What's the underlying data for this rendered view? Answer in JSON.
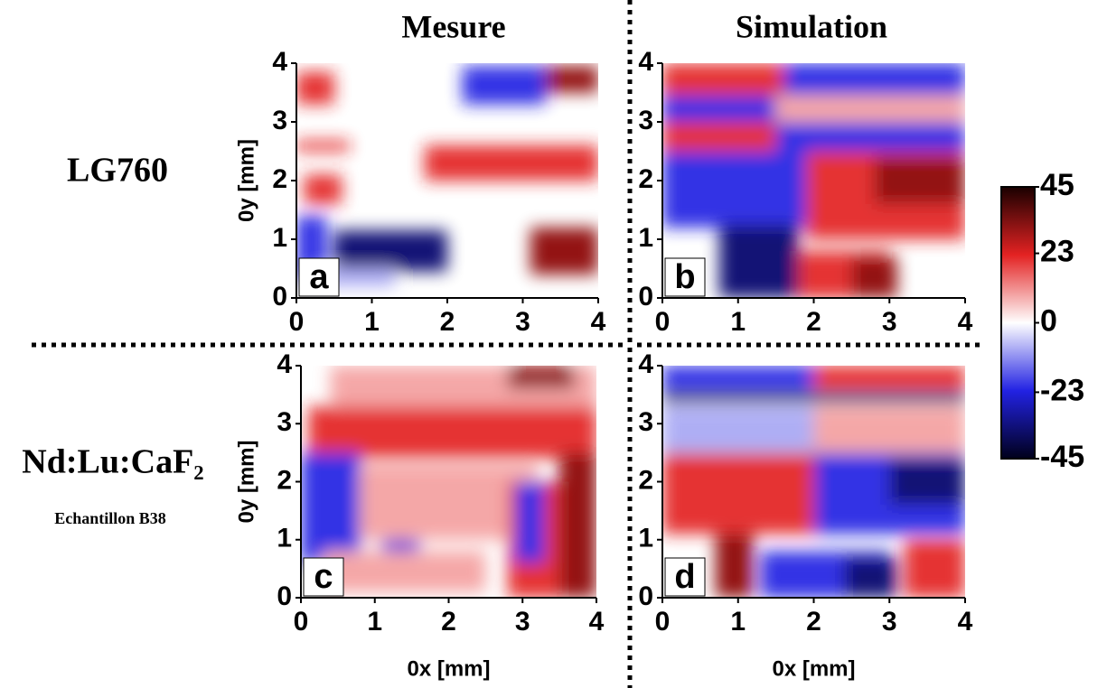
{
  "column_titles": [
    "Mesure",
    "Simulation"
  ],
  "row_labels": [
    "LG760",
    "Nd:Lu:CaF₂"
  ],
  "sample_label": "Echantillon  B38",
  "colorbar": {
    "lim": [
      -45,
      45
    ],
    "ticks": [
      45,
      23,
      0,
      -23,
      -45
    ],
    "colors": [
      "#1a0000",
      "#e32222",
      "#ffffff",
      "#2222e3",
      "#00001a"
    ]
  },
  "chart_data": [
    {
      "type": "heatmap",
      "panel": "a",
      "xlim": [
        0,
        4
      ],
      "ylim": [
        0,
        4
      ],
      "xticks": [
        0,
        1,
        2,
        3,
        4
      ],
      "yticks": [
        0,
        1,
        2,
        3,
        4
      ],
      "ylabel": "0y [mm]"
    },
    {
      "type": "heatmap",
      "panel": "b",
      "xlim": [
        0,
        4
      ],
      "ylim": [
        0,
        4
      ],
      "xticks": [
        0,
        1,
        2,
        3,
        4
      ],
      "yticks": [
        0,
        1,
        2,
        3,
        4
      ]
    },
    {
      "type": "heatmap",
      "panel": "c",
      "xlim": [
        0,
        4
      ],
      "ylim": [
        0,
        4
      ],
      "xticks": [
        0,
        1,
        2,
        3,
        4
      ],
      "yticks": [
        0,
        1,
        2,
        3,
        4
      ],
      "xlabel": "0x [mm]",
      "ylabel": "0y [mm]"
    },
    {
      "type": "heatmap",
      "panel": "d",
      "xlim": [
        0,
        4
      ],
      "ylim": [
        0,
        4
      ],
      "xticks": [
        0,
        1,
        2,
        3,
        4
      ],
      "yticks": [
        0,
        1,
        2,
        3,
        4
      ],
      "xlabel": "0x [mm]"
    }
  ]
}
